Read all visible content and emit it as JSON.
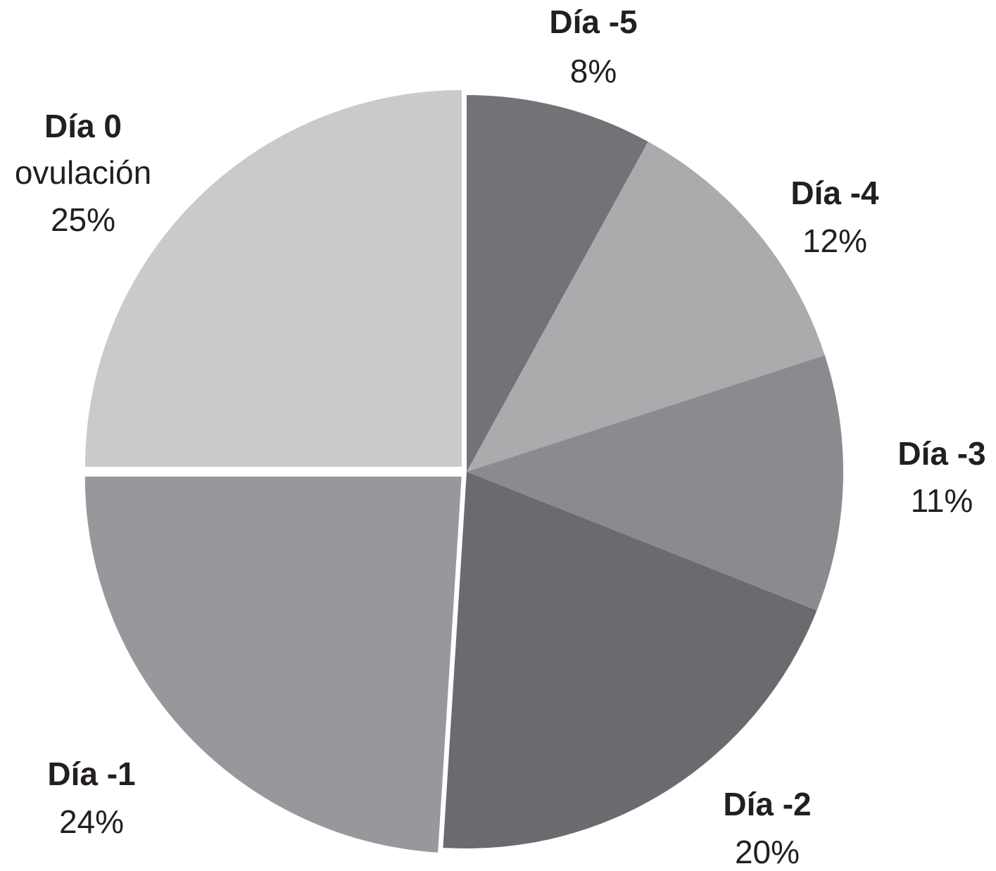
{
  "chart_data": {
    "type": "pie",
    "slices": [
      {
        "label": "Día -5",
        "sublabel": "",
        "value": 8,
        "value_label": "8%",
        "color": "#727376",
        "exploded": false
      },
      {
        "label": "Día -4",
        "sublabel": "",
        "value": 12,
        "value_label": "12%",
        "color": "#aaabad",
        "exploded": false
      },
      {
        "label": "Día -3",
        "sublabel": "",
        "value": 11,
        "value_label": "11%",
        "color": "#8a8b8e",
        "exploded": false
      },
      {
        "label": "Día -2",
        "sublabel": "",
        "value": 20,
        "value_label": "20%",
        "color": "#6a6b6e",
        "exploded": false
      },
      {
        "label": "Día -1",
        "sublabel": "",
        "value": 24,
        "value_label": "24%",
        "color": "#97989b",
        "exploded": true
      },
      {
        "label": "Día 0",
        "sublabel": "ovulación",
        "value": 25,
        "value_label": "25%",
        "color": "#c9cacc",
        "exploded": true
      }
    ],
    "start_angle": "12 o'clock",
    "direction": "clockwise",
    "legend": "none",
    "labels": "outside each slice"
  }
}
